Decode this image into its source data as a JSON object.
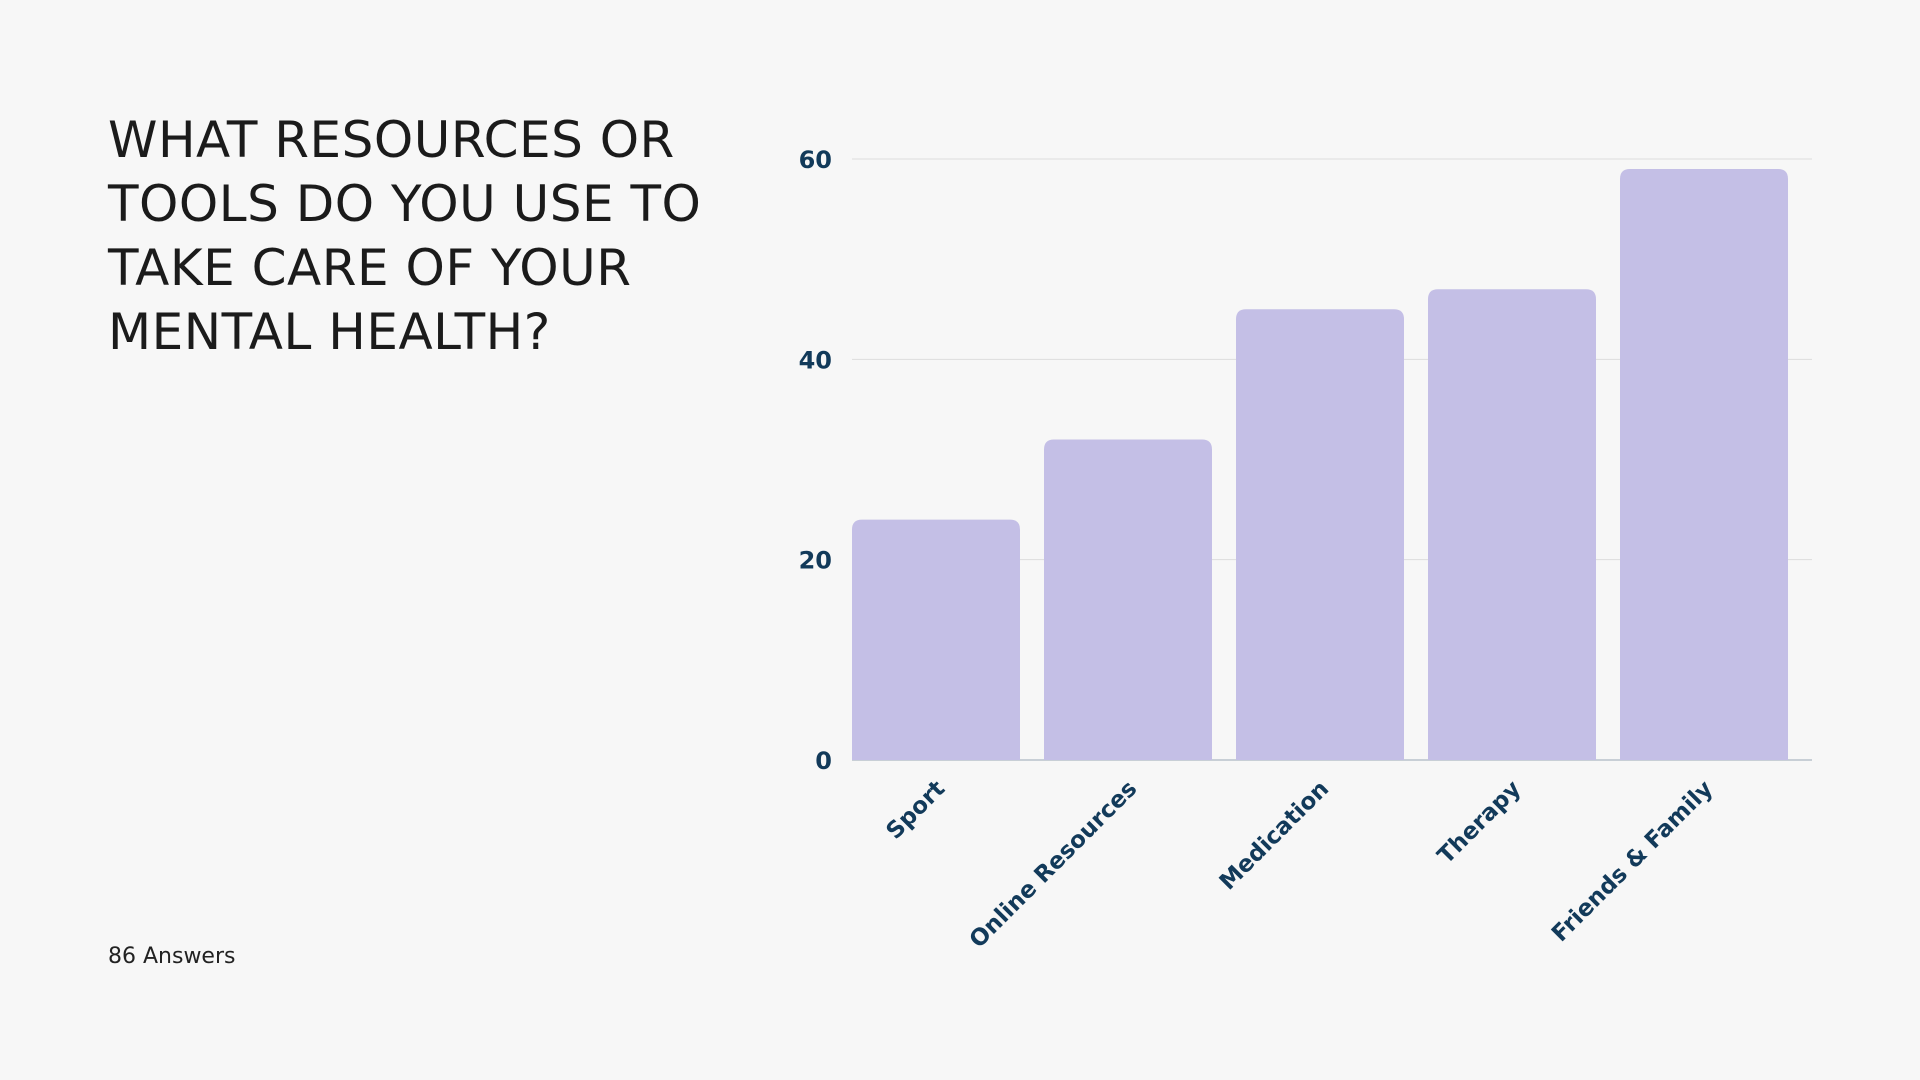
{
  "page": {
    "title": "WHAT RESOURCES OR TOOLS DO YOU USE TO TAKE CARE OF YOUR MENTAL HEALTH?",
    "answers_label": "86 Answers"
  },
  "colors": {
    "background": "#f7f7f7",
    "bar": "#c4bfe6",
    "axis_text": "#123a5a",
    "grid": "#dcdcdc",
    "title_text": "#1b1b1b"
  },
  "chart_data": {
    "type": "bar",
    "categories": [
      "Sport",
      "Online Resources",
      "Medication",
      "Therapy",
      "Friends & Family"
    ],
    "values": [
      24,
      32,
      45,
      47,
      59
    ],
    "yticks": [
      0,
      20,
      40,
      60
    ],
    "ylim": [
      0,
      60
    ],
    "grid": true,
    "title": "",
    "xlabel": "",
    "ylabel": ""
  }
}
